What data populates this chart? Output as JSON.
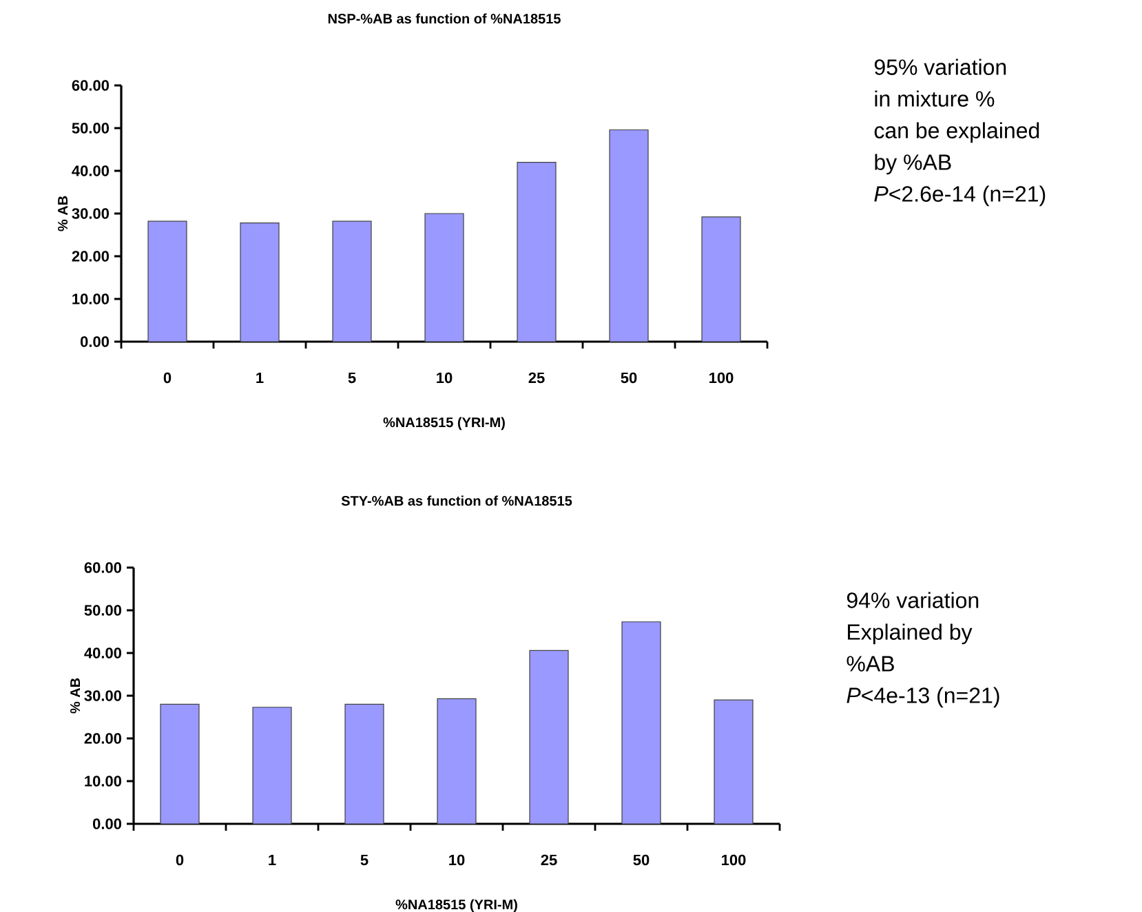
{
  "chart_data": [
    {
      "type": "bar",
      "title": "NSP-%AB as function of %NA18515",
      "xlabel": "%NA18515 (YRI-M)",
      "ylabel": "% AB",
      "categories": [
        "0",
        "1",
        "5",
        "10",
        "25",
        "50",
        "100"
      ],
      "values": [
        28.2,
        27.8,
        28.2,
        30.0,
        42.0,
        49.6,
        29.2
      ],
      "color": "#9999ff",
      "ylim": [
        0,
        60
      ],
      "yticks": [
        {
          "value": 0,
          "label": "0.00"
        },
        {
          "value": 10,
          "label": "10.00"
        },
        {
          "value": 20,
          "label": "20.00"
        },
        {
          "value": 30,
          "label": "30.00"
        },
        {
          "value": 40,
          "label": "40.00"
        },
        {
          "value": 50,
          "label": "50.00"
        },
        {
          "value": 60,
          "label": "60.00"
        }
      ]
    },
    {
      "type": "other",
      "annotations": [
        "95% variation",
        "in mixture %",
        "can be explained",
        "by %AB",
        "*P*<2.6e-14 (n=21)"
      ]
    },
    {
      "type": "bar",
      "title": "STY-%AB as function of %NA18515",
      "xlabel": "%NA18515 (YRI-M)",
      "ylabel": "% AB",
      "categories": [
        "0",
        "1",
        "5",
        "10",
        "25",
        "50",
        "100"
      ],
      "values": [
        28.0,
        27.3,
        28.0,
        29.3,
        40.6,
        47.3,
        29.0
      ],
      "color": "#9999ff",
      "ylim": [
        0,
        60
      ],
      "yticks": [
        {
          "value": 0,
          "label": "0.00"
        },
        {
          "value": 10,
          "label": "10.00"
        },
        {
          "value": 20,
          "label": "20.00"
        },
        {
          "value": 30,
          "label": "30.00"
        },
        {
          "value": 40,
          "label": "40.00"
        },
        {
          "value": 50,
          "label": "50.00"
        },
        {
          "value": 60,
          "label": "60.00"
        }
      ]
    },
    {
      "type": "other",
      "annotations": [
        "94% variation",
        "Explained by",
        "%AB",
        "*P*<4e-13 (n=21)"
      ]
    }
  ]
}
